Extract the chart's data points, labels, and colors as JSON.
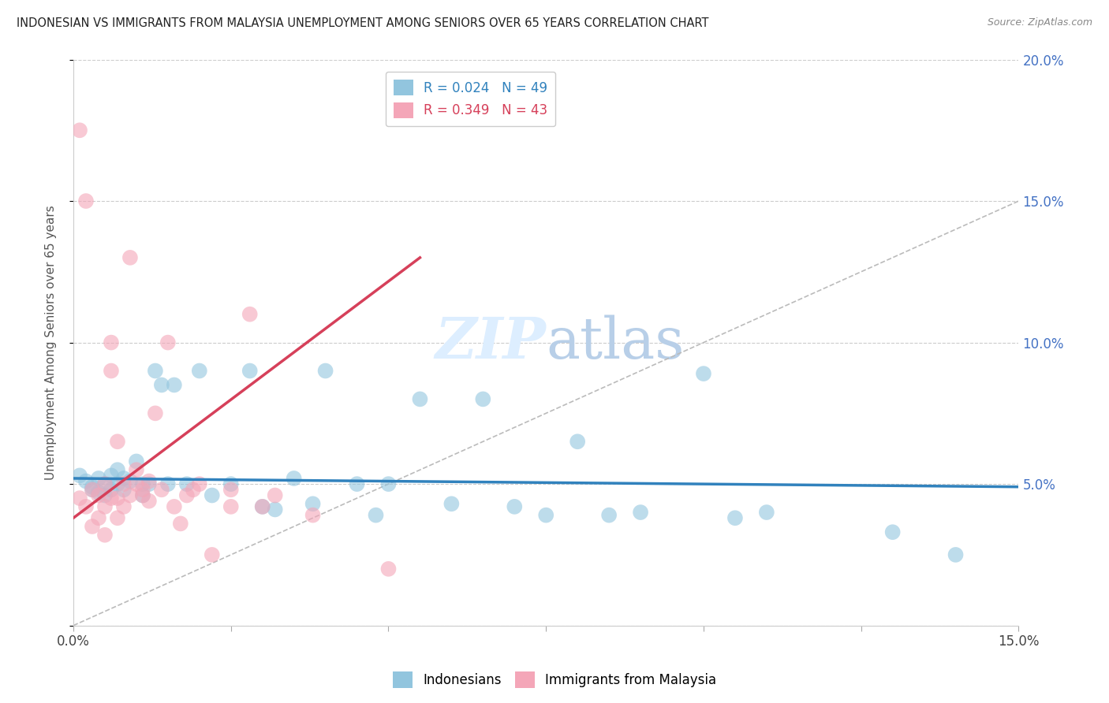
{
  "title": "INDONESIAN VS IMMIGRANTS FROM MALAYSIA UNEMPLOYMENT AMONG SENIORS OVER 65 YEARS CORRELATION CHART",
  "source": "Source: ZipAtlas.com",
  "ylabel": "Unemployment Among Seniors over 65 years",
  "xlim": [
    0.0,
    0.15
  ],
  "ylim": [
    0.0,
    0.2
  ],
  "xtick_vals": [
    0.0,
    0.025,
    0.05,
    0.075,
    0.1,
    0.125,
    0.15
  ],
  "xtick_labels": [
    "0.0%",
    "",
    "",
    "",
    "",
    "",
    "15.0%"
  ],
  "ytick_vals": [
    0.0,
    0.05,
    0.1,
    0.15,
    0.2
  ],
  "ytick_labels_right": [
    "",
    "5.0%",
    "10.0%",
    "15.0%",
    "20.0%"
  ],
  "indonesians_R": 0.024,
  "indonesians_N": 49,
  "malaysia_R": 0.349,
  "malaysia_N": 43,
  "indonesian_color": "#92c5de",
  "malaysia_color": "#f4a6b8",
  "indonesian_line_color": "#3182bd",
  "malaysia_line_color": "#d6405a",
  "watermark_color": "#ddeeff",
  "indonesians_x": [
    0.001,
    0.002,
    0.003,
    0.003,
    0.004,
    0.004,
    0.005,
    0.005,
    0.006,
    0.006,
    0.007,
    0.007,
    0.008,
    0.008,
    0.009,
    0.01,
    0.011,
    0.011,
    0.012,
    0.013,
    0.014,
    0.015,
    0.016,
    0.018,
    0.02,
    0.022,
    0.025,
    0.028,
    0.03,
    0.032,
    0.035,
    0.038,
    0.04,
    0.045,
    0.048,
    0.05,
    0.055,
    0.06,
    0.065,
    0.07,
    0.075,
    0.08,
    0.085,
    0.09,
    0.1,
    0.105,
    0.11,
    0.13,
    0.14
  ],
  "indonesians_y": [
    0.053,
    0.051,
    0.049,
    0.048,
    0.052,
    0.047,
    0.05,
    0.046,
    0.053,
    0.048,
    0.055,
    0.05,
    0.052,
    0.048,
    0.051,
    0.058,
    0.05,
    0.046,
    0.05,
    0.09,
    0.085,
    0.05,
    0.085,
    0.05,
    0.09,
    0.046,
    0.05,
    0.09,
    0.042,
    0.041,
    0.052,
    0.043,
    0.09,
    0.05,
    0.039,
    0.05,
    0.08,
    0.043,
    0.08,
    0.042,
    0.039,
    0.065,
    0.039,
    0.04,
    0.089,
    0.038,
    0.04,
    0.033,
    0.025
  ],
  "malaysia_x": [
    0.001,
    0.001,
    0.002,
    0.002,
    0.003,
    0.003,
    0.004,
    0.004,
    0.005,
    0.005,
    0.005,
    0.006,
    0.006,
    0.006,
    0.007,
    0.007,
    0.007,
    0.008,
    0.008,
    0.009,
    0.009,
    0.01,
    0.01,
    0.011,
    0.011,
    0.012,
    0.012,
    0.013,
    0.014,
    0.015,
    0.016,
    0.017,
    0.018,
    0.019,
    0.02,
    0.022,
    0.025,
    0.025,
    0.028,
    0.03,
    0.032,
    0.038,
    0.05
  ],
  "malaysia_y": [
    0.175,
    0.045,
    0.15,
    0.042,
    0.048,
    0.035,
    0.046,
    0.038,
    0.05,
    0.042,
    0.032,
    0.1,
    0.09,
    0.045,
    0.065,
    0.045,
    0.038,
    0.05,
    0.042,
    0.13,
    0.046,
    0.055,
    0.05,
    0.048,
    0.046,
    0.051,
    0.044,
    0.075,
    0.048,
    0.1,
    0.042,
    0.036,
    0.046,
    0.048,
    0.05,
    0.025,
    0.048,
    0.042,
    0.11,
    0.042,
    0.046,
    0.039,
    0.02
  ],
  "indo_trend_x": [
    0.0,
    0.15
  ],
  "indo_trend_y": [
    0.052,
    0.049
  ],
  "mal_trend_x": [
    0.0,
    0.055
  ],
  "mal_trend_y": [
    0.038,
    0.13
  ]
}
